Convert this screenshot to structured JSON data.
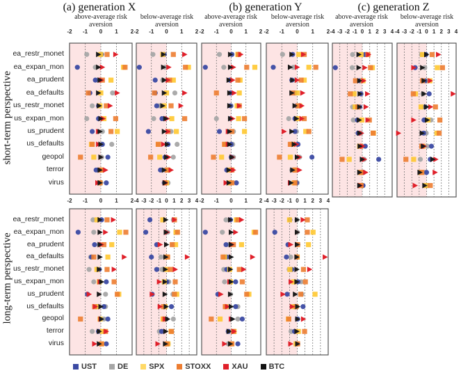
{
  "chart_data": {
    "type": "scatter",
    "title": "",
    "generations": [
      {
        "key": "X",
        "label": "(a) generation X"
      },
      {
        "key": "Y",
        "label": "(b) generation Y"
      },
      {
        "key": "Z",
        "label": "(c) generation Z"
      }
    ],
    "subtitles": {
      "above": "above-average risk aversion",
      "below": "below-average risk aversion"
    },
    "row_labels": {
      "short": "short-term perspective",
      "long": "long-term perspective"
    },
    "categories": [
      "ea_restr_monet",
      "ea_expan_mon",
      "ea_prudent",
      "ea_defaults",
      "us_restr_monet",
      "us_expan_mon",
      "us_prudent",
      "us_defaults",
      "geopol",
      "terror",
      "virus"
    ],
    "series": [
      {
        "name": "UST",
        "color": "#3b4aa3",
        "marker": "circle"
      },
      {
        "name": "DE",
        "color": "#a6a6a6",
        "marker": "circle"
      },
      {
        "name": "SPX",
        "color": "#ffc830",
        "marker": "square"
      },
      {
        "name": "STOXX",
        "color": "#ed7d31",
        "marker": "square"
      },
      {
        "name": "XAU",
        "color": "#e0202a",
        "marker": "triangle"
      },
      {
        "name": "BTC",
        "color": "#1a1a1a",
        "marker": "triangle"
      }
    ],
    "panels": [
      {
        "id": "short-X-above",
        "row": "short",
        "gen": "X",
        "group": "above",
        "xlim": [
          -2,
          2
        ],
        "ticks": [
          "-2",
          "-1",
          "0",
          "1",
          "2"
        ],
        "values": {
          "UST": [
            0.05,
            -1.5,
            -0.35,
            -0.7,
            -0.15,
            -0.15,
            -0.55,
            0.1,
            0.45,
            -0.3,
            0.35
          ],
          "DE": [
            -0.9,
            -0.35,
            -0.2,
            0.75,
            -0.55,
            -0.9,
            0.1,
            0.7,
            0.05,
            -0.1,
            0.0
          ],
          "SPX": [
            0.0,
            1.45,
            0.65,
            0.0,
            -0.05,
            0.2,
            1.05,
            -0.6,
            -0.45,
            0.05,
            -0.05
          ],
          "STOXX": [
            0.4,
            1.55,
            0.1,
            -0.8,
            0.35,
            0.95,
            0.65,
            -0.55,
            -1.3,
            0.0,
            -0.05
          ],
          "XAU": [
            0.95,
            0.1,
            0.05,
            1.05,
            0.6,
            0.15,
            -0.15,
            -0.15,
            0.0,
            0.3,
            -0.2
          ],
          "BTC": [
            -0.15,
            -0.15,
            -0.05,
            -0.15,
            -0.1,
            0.0,
            -0.05,
            0.0,
            0.0,
            -0.05,
            -0.05
          ]
        }
      },
      {
        "id": "short-X-below",
        "row": "short",
        "gen": "X",
        "group": "below",
        "xlim": [
          -2,
          2
        ],
        "ticks": [
          "-2",
          "-1",
          "0",
          "1",
          "2"
        ],
        "values": {
          "UST": [
            -0.15,
            -1.8,
            -0.75,
            -0.75,
            -0.65,
            -0.3,
            -1.2,
            0.1,
            -0.1,
            -0.4,
            -0.15
          ],
          "DE": [
            -0.9,
            -0.1,
            -0.25,
            0.55,
            -0.5,
            -0.85,
            0.3,
            0.7,
            0.45,
            -0.1,
            0.1
          ],
          "SPX": [
            -0.25,
            1.45,
            0.45,
            0.0,
            -0.15,
            0.35,
            0.65,
            -0.55,
            -0.45,
            0.1,
            0.0
          ],
          "STOXX": [
            0.45,
            1.25,
            0.2,
            -0.8,
            0.3,
            1.2,
            0.1,
            -0.55,
            -1.05,
            0.05,
            -0.1
          ],
          "XAU": [
            1.2,
            0.15,
            0.1,
            1.2,
            0.95,
            0.05,
            0.1,
            -0.2,
            0.15,
            0.3,
            -0.05
          ],
          "BTC": [
            -0.2,
            -0.2,
            -0.15,
            -0.15,
            -0.25,
            -0.05,
            -0.15,
            0.05,
            0.0,
            -0.15,
            -0.1
          ]
        }
      },
      {
        "id": "short-Y-above",
        "row": "short",
        "gen": "Y",
        "group": "above",
        "xlim": [
          -2,
          2
        ],
        "ticks": [
          "-2",
          "-1",
          "0",
          "1",
          "2"
        ],
        "values": {
          "UST": [
            0.05,
            -1.75,
            -0.1,
            -0.05,
            -0.05,
            -0.05,
            -0.8,
            0.0,
            0.0,
            -0.3,
            0.35
          ],
          "DE": [
            -0.8,
            -0.5,
            -0.05,
            -0.05,
            0.0,
            -1.0,
            0.15,
            0.1,
            0.15,
            0.0,
            0.0
          ],
          "SPX": [
            0.45,
            1.6,
            0.6,
            0.55,
            0.4,
            0.5,
            0.9,
            -0.45,
            -0.65,
            -0.1,
            -0.1
          ],
          "STOXX": [
            0.5,
            1.05,
            0.45,
            -1.0,
            0.55,
            0.9,
            0.05,
            -0.45,
            -1.2,
            0.05,
            0.05
          ],
          "XAU": [
            0.65,
            0.15,
            0.1,
            0.2,
            0.55,
            0.1,
            -0.2,
            -0.2,
            0.1,
            0.15,
            -0.35
          ],
          "BTC": [
            -0.05,
            -0.05,
            -0.15,
            -0.1,
            -0.1,
            -0.05,
            -0.1,
            -0.1,
            0.05,
            -0.15,
            -0.15
          ]
        }
      },
      {
        "id": "short-Y-below",
        "row": "short",
        "gen": "Y",
        "group": "below",
        "xlim": [
          -2,
          2
        ],
        "ticks": [
          "-2",
          "-1",
          "0",
          "1",
          "2"
        ],
        "values": {
          "UST": [
            -0.3,
            -1.55,
            -0.35,
            -0.15,
            -0.05,
            -0.15,
            -0.15,
            0.05,
            0.95,
            -0.15,
            -0.05
          ],
          "DE": [
            -0.95,
            -0.25,
            -0.15,
            -0.15,
            0.15,
            -0.55,
            -0.05,
            -0.05,
            0.15,
            -0.35,
            0.0
          ],
          "SPX": [
            0.1,
            0.75,
            0.45,
            0.0,
            0.15,
            0.05,
            0.55,
            -0.35,
            -0.45,
            -0.15,
            -0.2
          ],
          "STOXX": [
            0.45,
            1.2,
            0.25,
            -0.3,
            0.05,
            0.45,
            0.75,
            -0.45,
            -1.15,
            -0.15,
            -0.15
          ],
          "XAU": [
            0.4,
            0.0,
            0.0,
            0.35,
            0.3,
            0.3,
            -0.85,
            -0.05,
            0.15,
            0.15,
            -0.45
          ],
          "BTC": [
            -0.35,
            -0.45,
            -0.3,
            -0.35,
            -0.15,
            -0.05,
            -0.35,
            -0.2,
            0.0,
            -0.3,
            -0.4
          ]
        }
      },
      {
        "id": "short-Z-above",
        "row": "short",
        "gen": "Z",
        "group": "above",
        "xlim": [
          -4,
          4
        ],
        "ticks": [
          "-4",
          "-3",
          "-2",
          "-1",
          "0",
          "1",
          "2",
          "3",
          "4"
        ],
        "values": {
          "UST": [
            0.35,
            -3.6,
            -0.3,
            -0.2,
            -0.35,
            -0.65,
            -0.55,
            0.4,
            2.2,
            0.15,
            0.1
          ],
          "DE": [
            -1.3,
            -1.35,
            -0.15,
            -0.15,
            -1.3,
            -1.2,
            -0.2,
            -0.2,
            0.25,
            -0.15,
            0.1
          ],
          "SPX": [
            -0.15,
            1.35,
            0.1,
            -1.1,
            -0.95,
            -0.05,
            1.5,
            -0.35,
            -1.75,
            -0.25,
            -0.25
          ],
          "STOXX": [
            0.75,
            1.1,
            -0.9,
            -1.6,
            -0.6,
            0.95,
            1.45,
            -0.2,
            -2.7,
            -0.15,
            -0.15
          ],
          "XAU": [
            0.85,
            0.35,
            0.2,
            0.7,
            0.5,
            0.75,
            -0.1,
            0.05,
            0.3,
            0.45,
            -0.25
          ],
          "BTC": [
            -0.45,
            -0.45,
            -0.35,
            -0.3,
            -0.35,
            -0.4,
            -0.35,
            -0.3,
            0.0,
            -0.35,
            -0.35
          ]
        }
      },
      {
        "id": "short-Z-below",
        "row": "short",
        "gen": "Z",
        "group": "below",
        "xlim": [
          -4,
          4
        ],
        "ticks": [
          "-4",
          "-3",
          "-2",
          "-1",
          "0",
          "1",
          "2",
          "3",
          "4"
        ],
        "values": {
          "UST": [
            -0.1,
            -1.55,
            -0.2,
            0.35,
            -0.2,
            -0.35,
            -0.4,
            0.65,
            0.5,
            0.0,
            0.0
          ],
          "DE": [
            -0.7,
            -0.25,
            0.1,
            -0.5,
            -0.3,
            0.6,
            -0.05,
            0.1,
            -0.85,
            -0.3,
            0.1
          ],
          "SPX": [
            -0.55,
            1.45,
            0.45,
            -1.5,
            -0.75,
            0.2,
            1.4,
            -0.5,
            -1.75,
            -0.8,
            -0.1
          ],
          "STOXX": [
            0.75,
            2.15,
            -0.55,
            -1.8,
            1.2,
            1.8,
            1.7,
            -0.65,
            -2.8,
            -0.65,
            0.5
          ],
          "XAU": [
            1.6,
            -1.75,
            0.5,
            3.6,
            0.55,
            -1.75,
            -3.8,
            -0.3,
            1.25,
            1.15,
            -1.55
          ],
          "BTC": [
            0.0,
            -0.55,
            -0.35,
            -0.35,
            0.0,
            0.1,
            -0.6,
            -0.45,
            0.85,
            -0.9,
            -0.25
          ]
        }
      },
      {
        "id": "long-X-above",
        "row": "long",
        "gen": "X",
        "group": "above",
        "xlim": [
          -2,
          2
        ],
        "ticks": [
          "-2",
          "-1",
          "0",
          "1",
          "2"
        ],
        "values": {
          "UST": [
            0.05,
            -1.45,
            -0.4,
            -0.6,
            -0.1,
            0.35,
            -0.85,
            0.2,
            0.45,
            -0.15,
            0.35
          ],
          "DE": [
            -0.5,
            -0.45,
            -0.1,
            -0.65,
            -0.75,
            -0.45,
            0.3,
            0.3,
            0.2,
            -0.55,
            -0.05
          ],
          "SPX": [
            -0.25,
            1.2,
            0.7,
            0.45,
            -0.25,
            -0.1,
            1.15,
            -0.25,
            -0.05,
            0.1,
            0.05
          ],
          "STOXX": [
            0.4,
            1.6,
            0.2,
            -0.45,
            0.4,
            0.85,
            1.05,
            -0.4,
            -1.3,
            0.3,
            0.05
          ],
          "XAU": [
            0.8,
            0.3,
            0.05,
            1.5,
            0.85,
            -0.05,
            -0.75,
            -0.35,
            0.0,
            0.35,
            -0.4
          ],
          "BTC": [
            -0.05,
            -0.05,
            -0.05,
            -0.05,
            -0.1,
            0.05,
            -0.1,
            0.0,
            0.05,
            -0.1,
            -0.1
          ]
        }
      },
      {
        "id": "long-X-below",
        "row": "long",
        "gen": "X",
        "group": "below",
        "xlim": [
          -4,
          4
        ],
        "ticks": [
          "-4",
          "-3",
          "-2",
          "-1",
          "0",
          "1",
          "2",
          "3",
          "4"
        ],
        "values": {
          "UST": [
            -2.2,
            -2.75,
            -1.3,
            -2.0,
            -1.3,
            0.05,
            -1.9,
            0.65,
            -0.05,
            -0.65,
            0.2
          ],
          "DE": [
            0.9,
            0.15,
            0.8,
            -0.75,
            -0.6,
            0.3,
            0.85,
            -0.25,
            0.9,
            -0.95,
            0.0
          ],
          "SPX": [
            -0.5,
            1.25,
            1.2,
            0.05,
            0.05,
            -0.3,
            1.35,
            -0.2,
            -0.45,
            0.6,
            0.2
          ],
          "STOXX": [
            1.05,
            1.45,
            0.75,
            0.15,
            0.5,
            1.15,
            1.05,
            -0.4,
            -0.3,
            0.65,
            0.05
          ],
          "XAU": [
            1.05,
            0.1,
            -0.85,
            2.75,
            1.15,
            -0.95,
            -1.9,
            -0.85,
            -0.15,
            -0.1,
            -1.15
          ],
          "BTC": [
            -0.1,
            -0.05,
            0.0,
            -0.1,
            -0.15,
            -0.2,
            -0.2,
            -0.05,
            0.15,
            -0.1,
            -0.15
          ]
        }
      },
      {
        "id": "long-Y-above",
        "row": "long",
        "gen": "Y",
        "group": "above",
        "xlim": [
          -2,
          2
        ],
        "ticks": [
          "-2",
          "-1",
          "0",
          "1",
          "2"
        ],
        "values": {
          "UST": [
            -0.05,
            -1.75,
            -0.35,
            -0.3,
            -0.3,
            0.3,
            -0.9,
            0.3,
            0.75,
            -0.2,
            0.45
          ],
          "DE": [
            -0.35,
            -0.6,
            -0.15,
            -0.45,
            -0.5,
            -0.45,
            -0.05,
            0.45,
            0.45,
            -0.15,
            -0.2
          ],
          "SPX": [
            0.35,
            1.55,
            0.7,
            -0.45,
            -0.1,
            -0.05,
            1.2,
            -0.35,
            -0.75,
            0.2,
            0.0
          ],
          "STOXX": [
            0.45,
            1.65,
            0.15,
            -0.55,
            0.55,
            0.75,
            1.05,
            -0.4,
            -1.35,
            0.15,
            0.05
          ],
          "XAU": [
            0.7,
            0.3,
            0.05,
            1.45,
            0.85,
            -0.1,
            -0.7,
            -0.25,
            0.0,
            0.2,
            -0.45
          ],
          "BTC": [
            -0.05,
            0.0,
            0.0,
            0.0,
            -0.05,
            0.0,
            -0.05,
            0.0,
            0.1,
            -0.15,
            -0.05
          ]
        }
      },
      {
        "id": "long-Y-below",
        "row": "long",
        "gen": "Y",
        "group": "below",
        "xlim": [
          -4,
          4
        ],
        "ticks": [
          "-4",
          "-3",
          "-2",
          "-1",
          "0",
          "1",
          "2",
          "3",
          "4"
        ],
        "values": {
          "UST": [
            -0.95,
            -2.9,
            -1.2,
            -1.4,
            -0.7,
            0.1,
            -1.3,
            0.75,
            0.05,
            -0.35,
            0.0
          ],
          "DE": [
            -0.05,
            0.0,
            0.1,
            -0.85,
            -1.05,
            0.5,
            0.6,
            -0.05,
            0.0,
            -0.8,
            0.0
          ],
          "SPX": [
            -1.0,
            2.05,
            1.45,
            0.0,
            -0.95,
            -0.45,
            2.3,
            -0.45,
            -1.15,
            0.15,
            -0.15
          ],
          "STOXX": [
            1.3,
            1.3,
            0.05,
            -0.05,
            0.8,
            1.05,
            0.45,
            -0.15,
            -1.1,
            0.95,
            0.05
          ],
          "XAU": [
            0.75,
            0.0,
            -0.85,
            3.6,
            1.6,
            -0.8,
            -1.85,
            -0.65,
            0.8,
            -0.05,
            -0.85
          ],
          "BTC": [
            0.0,
            0.0,
            0.0,
            -0.05,
            -0.05,
            -0.05,
            -0.25,
            0.05,
            0.05,
            -0.05,
            0.05
          ]
        }
      }
    ],
    "legend": [
      "UST",
      "DE",
      "SPX",
      "STOXX",
      "XAU",
      "BTC"
    ],
    "legend_position": "bottom",
    "grid": "vertical dashed at each tick",
    "shaded_region": "negative x values (pink)"
  }
}
